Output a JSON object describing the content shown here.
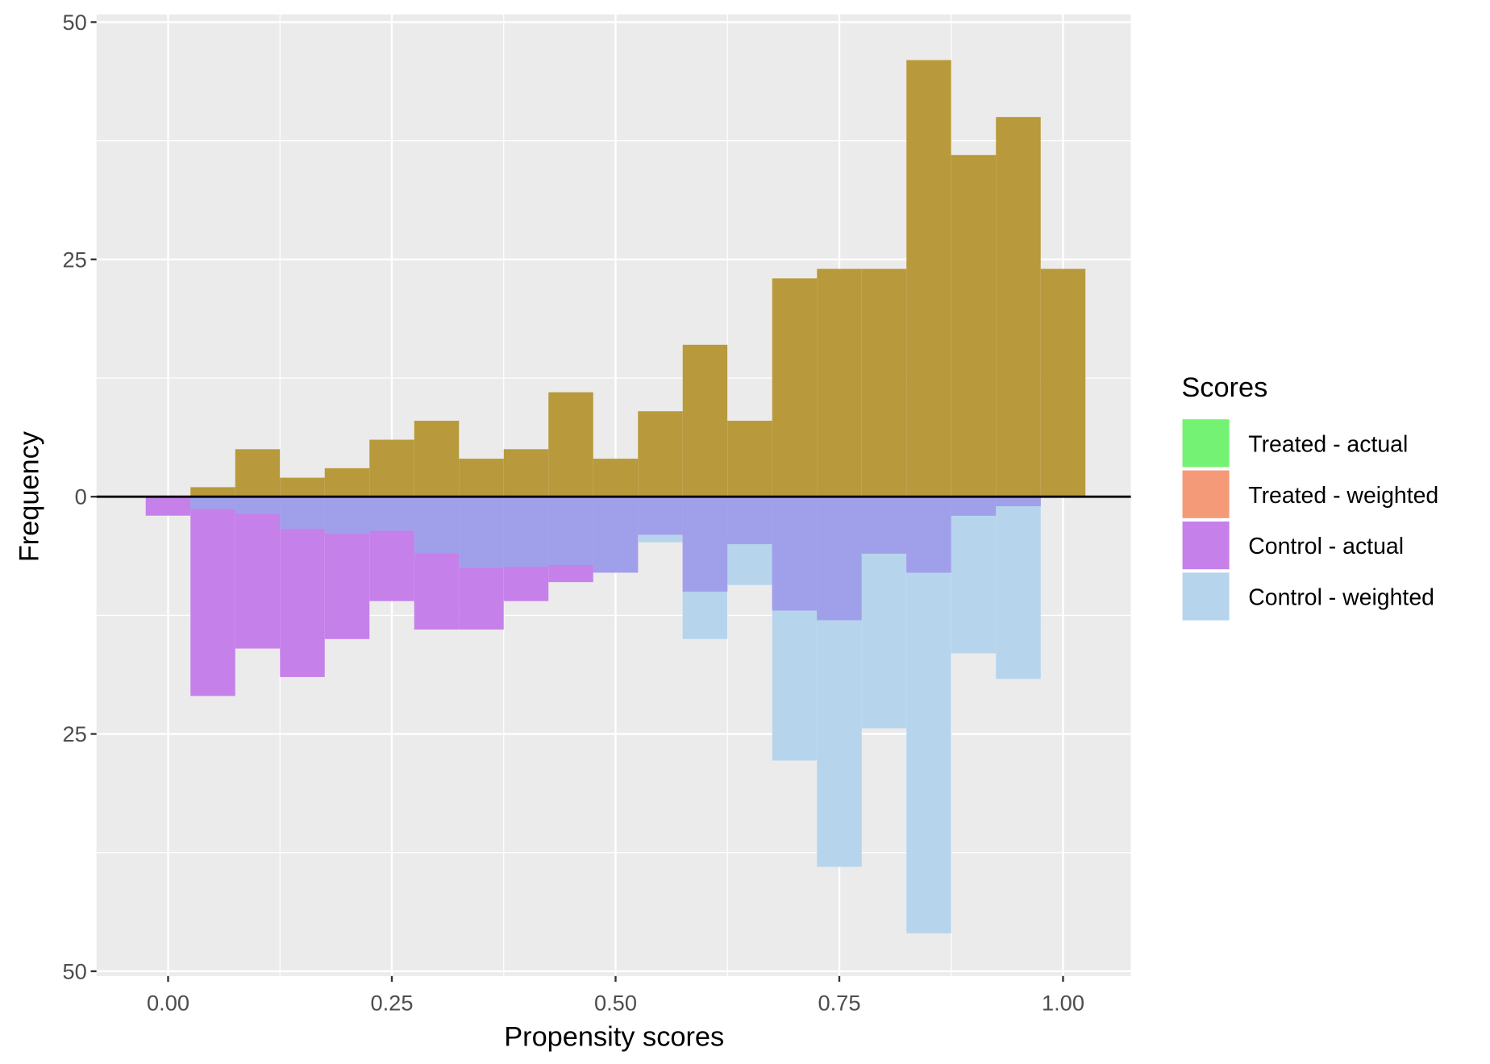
{
  "chart_data": {
    "type": "bar",
    "subtype": "mirrored histogram",
    "title": "",
    "xlabel": "Propensity scores",
    "ylabel": "Frequency",
    "xlim": [
      -0.08,
      1.08
    ],
    "ylim": [
      -50,
      50
    ],
    "x_ticks": [
      0,
      0.25,
      0.5,
      0.75,
      1.0
    ],
    "x_tick_labels": [
      "0.00",
      "0.25",
      "0.50",
      "0.75",
      "1.00"
    ],
    "y_ticks": [
      50,
      25,
      0,
      -25,
      -50
    ],
    "y_tick_labels": [
      "50",
      "25",
      "0",
      "25",
      "50"
    ],
    "bin_width": 0.05,
    "bin_centers": [
      0.0,
      0.05,
      0.1,
      0.15,
      0.2,
      0.25,
      0.3,
      0.35,
      0.4,
      0.45,
      0.5,
      0.55,
      0.6,
      0.65,
      0.7,
      0.75,
      0.8,
      0.85,
      0.9,
      0.95,
      1.0
    ],
    "grid": true,
    "legend": {
      "title": "Scores",
      "placement": "right",
      "entries": [
        {
          "label": "Treated - actual",
          "color": "#74f273"
        },
        {
          "label": "Treated - weighted",
          "color": "#f59a78"
        },
        {
          "label": "Control - actual",
          "color": "#c580ea"
        },
        {
          "label": "Control - weighted",
          "color": "#b6d5ec"
        }
      ]
    },
    "series": [
      {
        "name": "Treated - actual",
        "direction": "up",
        "values": [
          0,
          1,
          5,
          2,
          3,
          6,
          8,
          4,
          5,
          11,
          4,
          9,
          16,
          8,
          23,
          24,
          24,
          46,
          36,
          40,
          24
        ]
      },
      {
        "name": "Treated - weighted",
        "direction": "up",
        "values": [
          0,
          1,
          5,
          2,
          3,
          6,
          8,
          4,
          5,
          11,
          4,
          9,
          16,
          8,
          23,
          24,
          24,
          46,
          36,
          40,
          24
        ]
      },
      {
        "name": "Control - actual",
        "direction": "down",
        "values": [
          2,
          21,
          16,
          19,
          15,
          11,
          14,
          14,
          11,
          9,
          8,
          4,
          10,
          5,
          12,
          13,
          6,
          8,
          2,
          1,
          0
        ]
      },
      {
        "name": "Control - weighted",
        "direction": "down",
        "values": [
          0,
          1.3,
          1.8,
          3.4,
          3.9,
          3.6,
          6,
          7.5,
          7.4,
          7.2,
          8,
          4.8,
          15,
          9.3,
          27.8,
          39,
          24.4,
          46,
          16.5,
          19.2,
          0
        ]
      }
    ],
    "colors": {
      "treated_overlap": "#b89a3c",
      "control_overlap": "#a0a0ea",
      "panel": "#ebebeb",
      "zero_line": "#000000"
    }
  }
}
